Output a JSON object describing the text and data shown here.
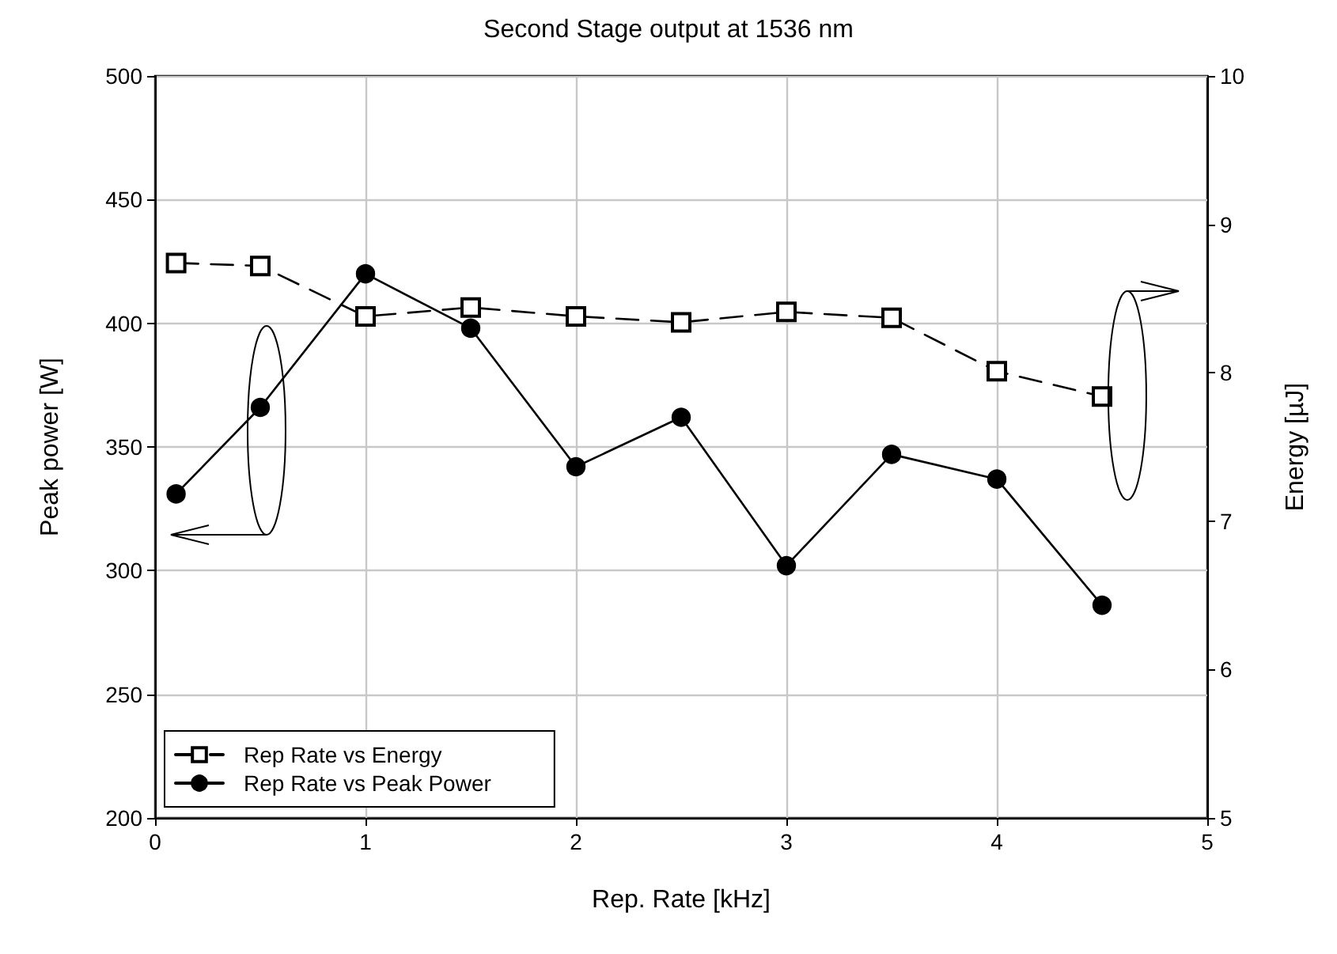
{
  "chart_data": {
    "type": "line",
    "title": "Second Stage output at 1536 nm",
    "xlabel": "Rep. Rate [kHz]",
    "ylabel": "Peak power [W]",
    "y2label": "Energy [µJ]",
    "x": [
      0.1,
      0.5,
      1,
      1.5,
      2,
      2.5,
      3,
      3.5,
      4,
      4.5
    ],
    "series": [
      {
        "name": "Rep Rate vs Energy",
        "color": "#000000",
        "axis": "y2",
        "marker": "square",
        "line_style": "dashed",
        "values": [
          8.74,
          8.72,
          8.38,
          8.44,
          8.38,
          8.34,
          8.41,
          8.37,
          8.01,
          7.84
        ]
      },
      {
        "name": "Rep Rate vs Peak Power",
        "color": "#000000",
        "marker": "circle",
        "line_style": "solid",
        "values": [
          331,
          366,
          420,
          398,
          342,
          362,
          302,
          347,
          337,
          286
        ]
      }
    ],
    "xlim": [
      0,
      5
    ],
    "xticks": [
      0,
      1,
      2,
      3,
      4,
      5
    ],
    "ylim": [
      200,
      500
    ],
    "yticks": [
      200,
      250,
      300,
      350,
      400,
      450,
      500
    ],
    "y2lim": [
      5,
      10
    ],
    "y2ticks": [
      5,
      6,
      7,
      8,
      9,
      10
    ],
    "grid": true,
    "legend": "bottom left"
  }
}
